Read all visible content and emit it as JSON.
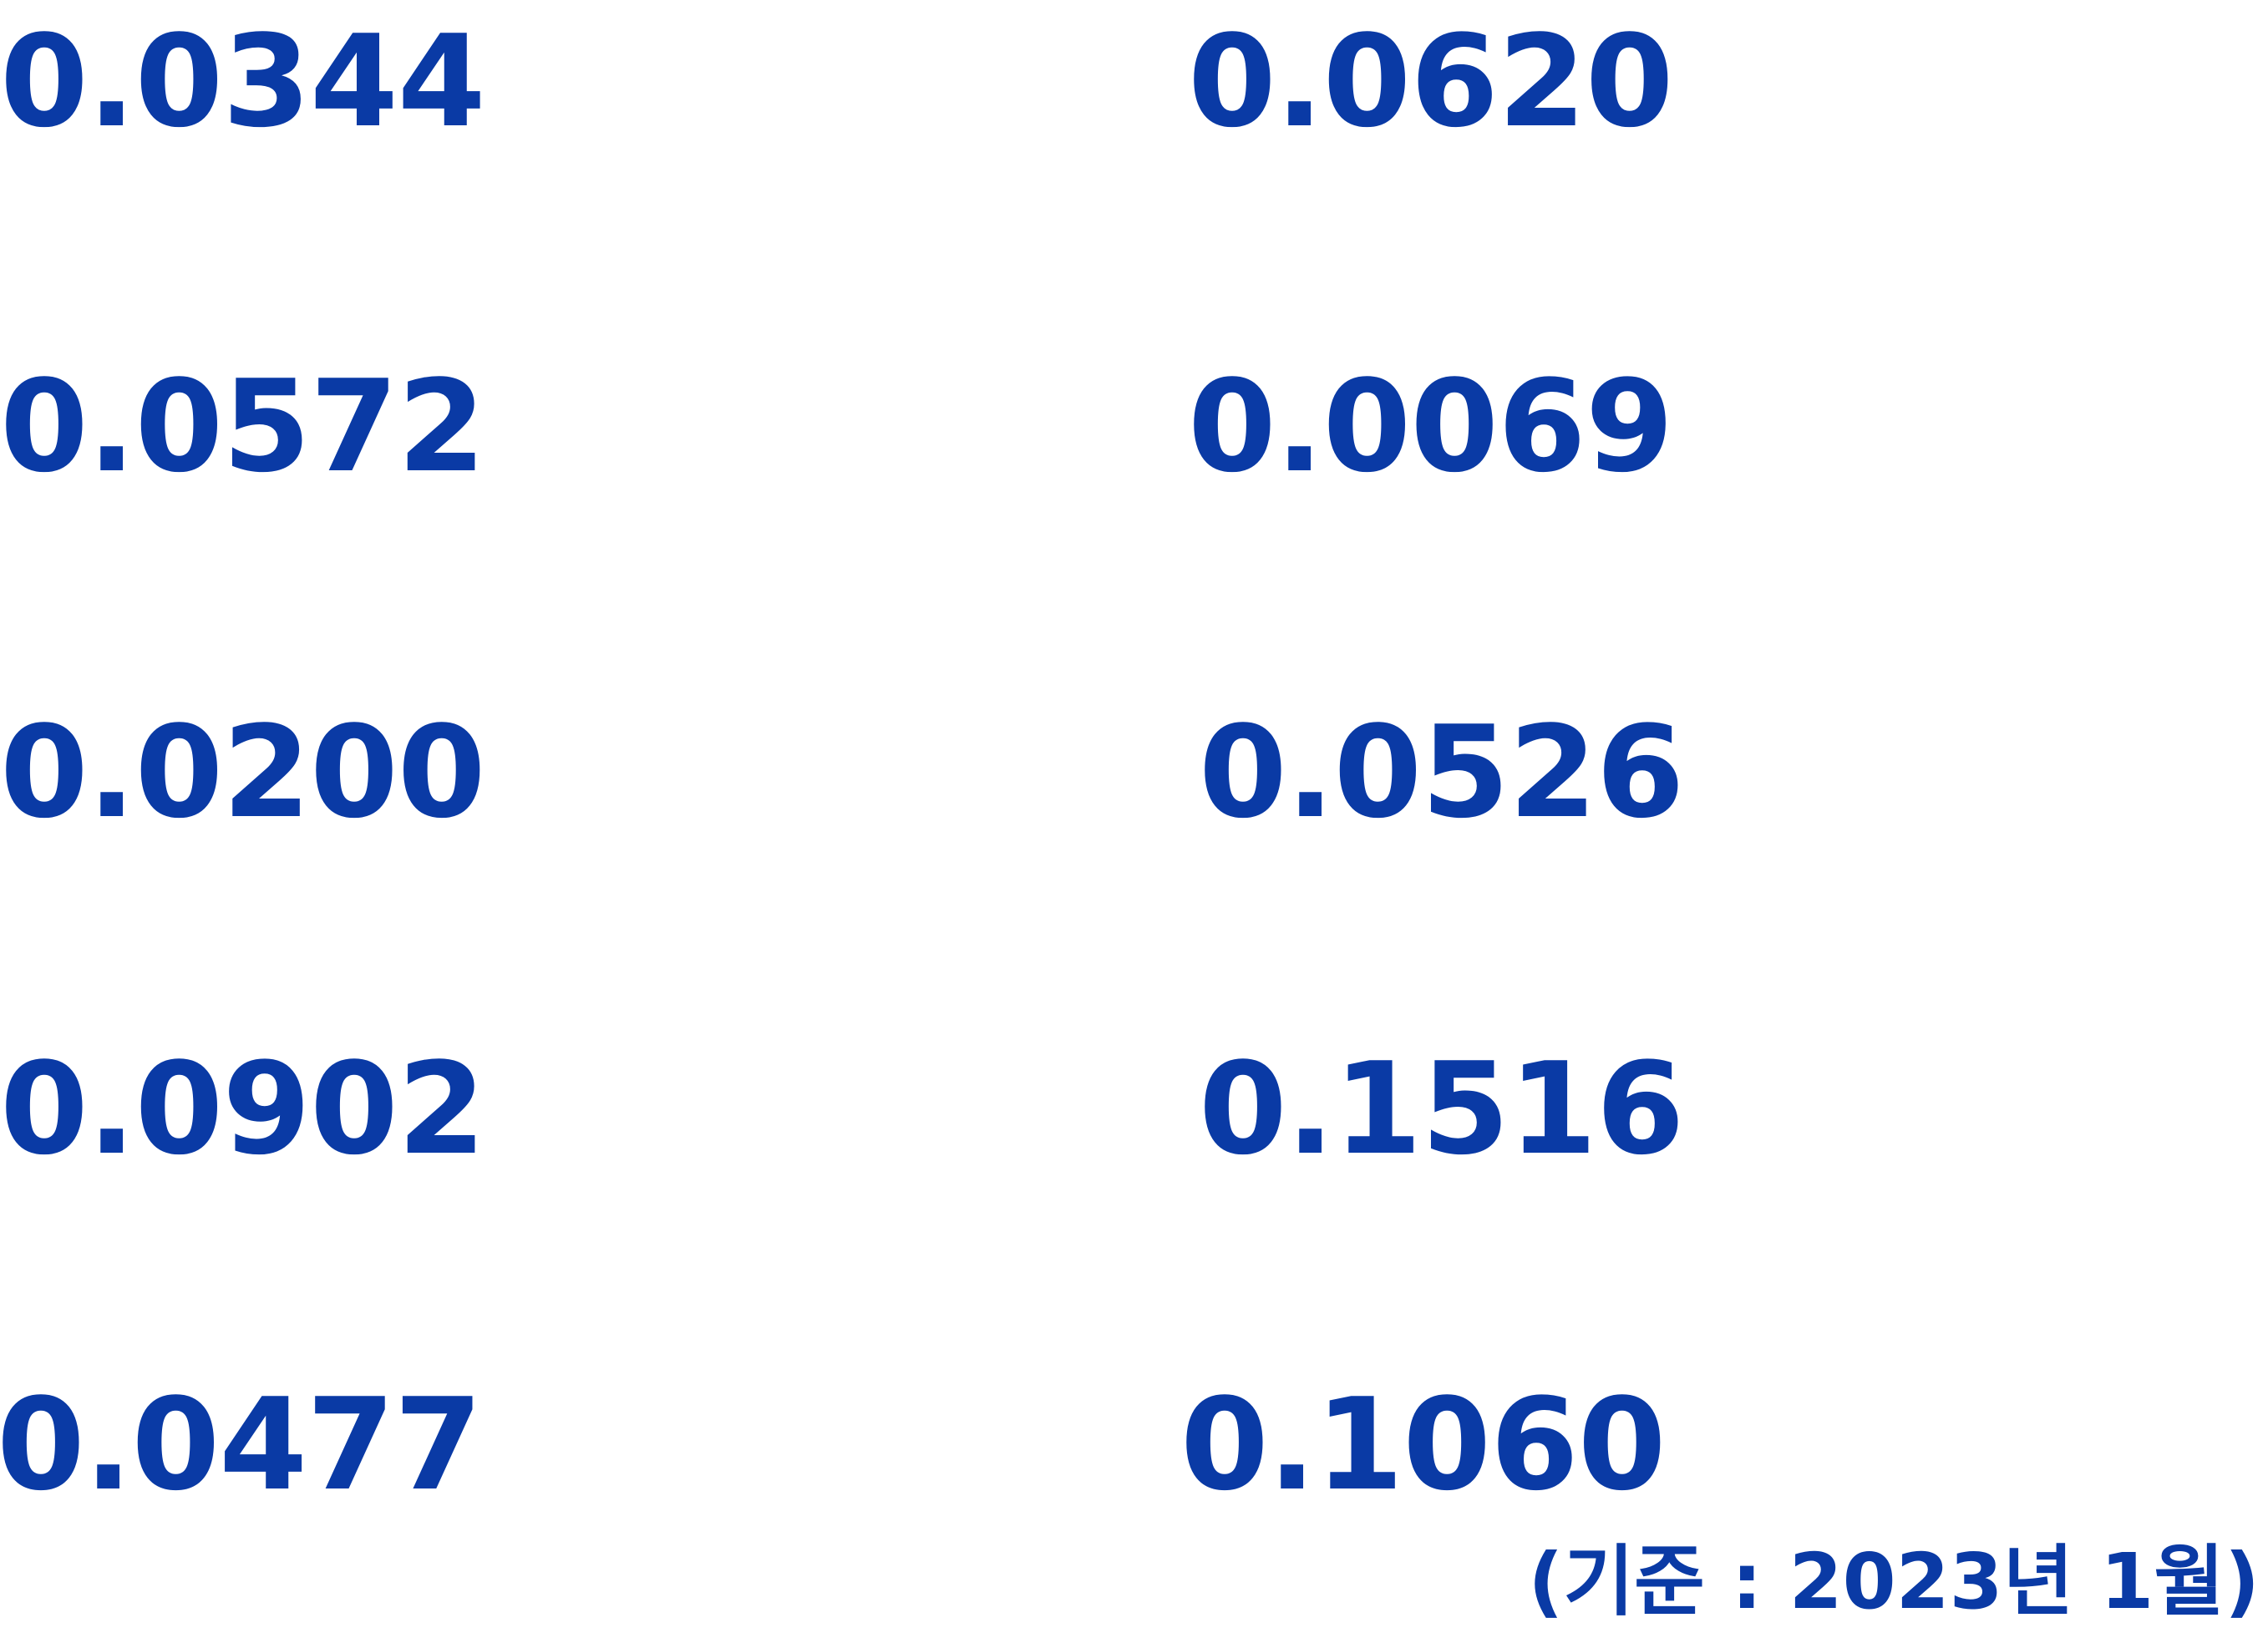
{
  "values": {
    "left": [
      "0.0344",
      "0.0572",
      "0.0200",
      "0.0902",
      "0.0477"
    ],
    "right": [
      "0.0620",
      "0.0069",
      "0.0526",
      "0.1516",
      "0.1060"
    ]
  },
  "footnote": "(기준 : 2023년 1월)",
  "colors": {
    "text": "#0a3aa5",
    "background": "#ffffff"
  }
}
